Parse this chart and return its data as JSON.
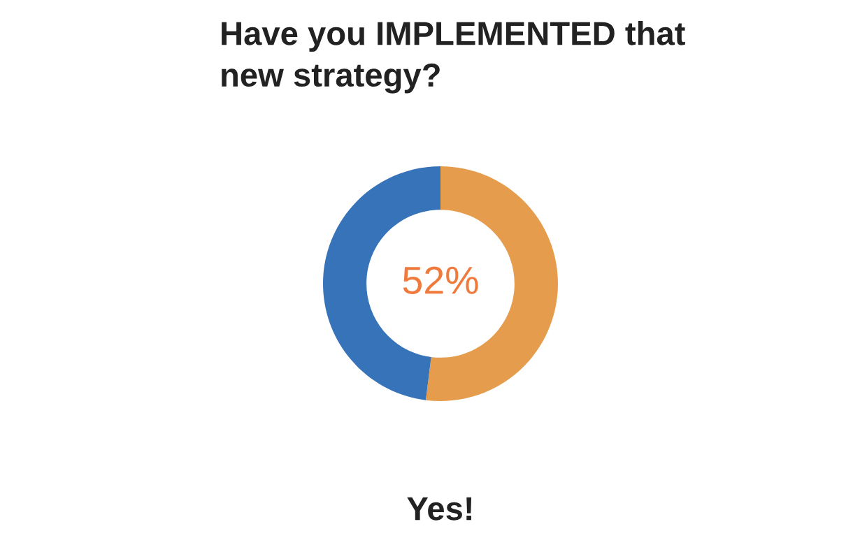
{
  "chart_data": {
    "type": "donut",
    "title": "Have you IMPLEMENTED that\nnew strategy?",
    "categories": [
      null,
      null
    ],
    "values": [
      52,
      48
    ],
    "colors": [
      "#e59d4d",
      "#3773b9"
    ],
    "value_labels": [
      "52%",
      null
    ],
    "annotations": [
      "Yes!"
    ]
  }
}
